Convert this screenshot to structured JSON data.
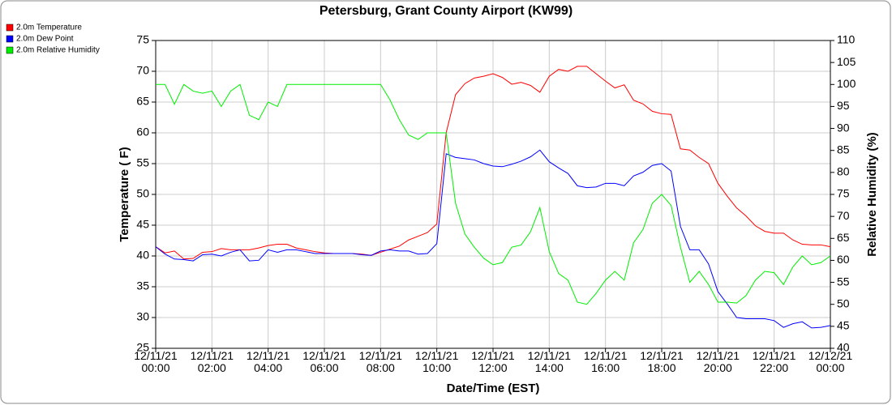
{
  "chart_data": {
    "type": "line",
    "title": "Petersburg, Grant County Airport (KW99)",
    "xlabel": "Date/Time (EST)",
    "ylabel": "Temperature ( F)",
    "y2label": "Relative Humidity (%)",
    "x": [
      "12/11/21 00:00",
      "12/11/21 00:20",
      "12/11/21 00:40",
      "12/11/21 01:00",
      "12/11/21 01:20",
      "12/11/21 01:40",
      "12/11/21 02:00",
      "12/11/21 02:20",
      "12/11/21 02:40",
      "12/11/21 03:00",
      "12/11/21 03:20",
      "12/11/21 03:40",
      "12/11/21 04:00",
      "12/11/21 04:20",
      "12/11/21 04:40",
      "12/11/21 05:00",
      "12/11/21 05:20",
      "12/11/21 05:40",
      "12/11/21 06:00",
      "12/11/21 06:20",
      "12/11/21 06:40",
      "12/11/21 07:00",
      "12/11/21 07:20",
      "12/11/21 07:40",
      "12/11/21 08:00",
      "12/11/21 08:20",
      "12/11/21 08:40",
      "12/11/21 09:00",
      "12/11/21 09:20",
      "12/11/21 09:40",
      "12/11/21 10:00",
      "12/11/21 10:20",
      "12/11/21 10:40",
      "12/11/21 11:00",
      "12/11/21 11:20",
      "12/11/21 11:40",
      "12/11/21 12:00",
      "12/11/21 12:20",
      "12/11/21 12:40",
      "12/11/21 13:00",
      "12/11/21 13:20",
      "12/11/21 13:40",
      "12/11/21 14:00",
      "12/11/21 14:20",
      "12/11/21 14:40",
      "12/11/21 15:00",
      "12/11/21 15:20",
      "12/11/21 15:40",
      "12/11/21 16:00",
      "12/11/21 16:20",
      "12/11/21 16:40",
      "12/11/21 17:00",
      "12/11/21 17:20",
      "12/11/21 17:40",
      "12/11/21 18:00",
      "12/11/21 18:20",
      "12/11/21 18:40",
      "12/11/21 19:00",
      "12/11/21 19:20",
      "12/11/21 19:40",
      "12/11/21 20:00",
      "12/11/21 20:20",
      "12/11/21 20:40",
      "12/11/21 21:00",
      "12/11/21 21:20",
      "12/11/21 21:40",
      "12/11/21 22:00",
      "12/11/21 22:20",
      "12/11/21 22:40",
      "12/11/21 23:00",
      "12/11/21 23:20",
      "12/11/21 23:40",
      "12/12/21 00:00"
    ],
    "series": [
      {
        "name": "2.0m Temperature",
        "color": "#ff0000",
        "values": [
          41.5,
          40.5,
          40.8,
          39.5,
          39.6,
          40.6,
          40.7,
          41.2,
          41.0,
          41.0,
          41.0,
          41.3,
          41.7,
          41.9,
          41.9,
          41.3,
          41.0,
          40.7,
          40.5,
          40.4,
          40.4,
          40.4,
          40.3,
          40.1,
          40.6,
          41.1,
          41.6,
          42.6,
          43.2,
          43.8,
          45.2,
          60.0,
          66.2,
          68.0,
          68.9,
          69.2,
          69.6,
          69.0,
          67.9,
          68.2,
          67.7,
          66.6,
          69.2,
          70.3,
          70.0,
          70.8,
          70.8,
          69.6,
          68.4,
          67.3,
          67.8,
          65.3,
          64.7,
          63.5,
          63.1,
          63.0,
          57.4,
          57.2,
          56.0,
          55.0,
          51.8,
          49.7,
          47.8,
          46.5,
          44.9,
          44.0,
          43.7,
          43.7,
          42.6,
          41.9,
          41.8,
          41.8,
          41.5
        ]
      },
      {
        "name": "2.0m Dew Point",
        "color": "#0000ff",
        "values": [
          41.5,
          40.3,
          39.5,
          39.4,
          39.2,
          40.2,
          40.3,
          40.0,
          40.6,
          41.0,
          39.2,
          39.3,
          41.0,
          40.6,
          41.0,
          41.0,
          40.7,
          40.4,
          40.4,
          40.4,
          40.4,
          40.4,
          40.2,
          40.1,
          40.8,
          41.0,
          40.8,
          40.8,
          40.3,
          40.4,
          42.0,
          56.6,
          56.0,
          55.8,
          55.6,
          55.0,
          54.6,
          54.5,
          54.9,
          55.4,
          56.1,
          57.2,
          55.3,
          54.3,
          53.4,
          51.4,
          51.1,
          51.2,
          51.8,
          51.8,
          51.4,
          53.0,
          53.6,
          54.7,
          55.0,
          53.8,
          44.8,
          41.0,
          41.0,
          38.7,
          34.2,
          32.2,
          30.0,
          29.8,
          29.8,
          29.8,
          29.5,
          28.4,
          29.0,
          29.3,
          28.3,
          28.4,
          28.7
        ]
      },
      {
        "name": "2.0m Relative Humidity",
        "color": "#00ee00",
        "axis": "y2",
        "values": [
          100,
          100,
          95.5,
          100,
          98.5,
          98,
          98.5,
          95,
          98.5,
          100,
          93,
          92,
          96,
          95,
          100,
          100,
          100,
          100,
          100,
          100,
          100,
          100,
          100,
          100,
          100,
          96.5,
          92,
          88.5,
          87.5,
          89,
          89,
          89,
          73,
          66,
          63,
          60.5,
          59,
          59.5,
          63,
          63.5,
          66.5,
          72,
          62,
          57,
          55.5,
          50.5,
          50,
          52.5,
          55.5,
          57.5,
          55.5,
          64,
          67,
          73,
          75,
          72.5,
          63,
          55,
          57.5,
          54.5,
          50.5,
          50.5,
          50.3,
          52,
          55.5,
          57.5,
          57.2,
          54.5,
          58.5,
          61,
          59,
          59.5,
          61
        ]
      }
    ],
    "xlim": [
      "12/11/21 00:00",
      "12/12/21 00:00"
    ],
    "xticks": [
      "12/11/21\n00:00",
      "12/11/21\n02:00",
      "12/11/21\n04:00",
      "12/11/21\n06:00",
      "12/11/21\n08:00",
      "12/11/21\n10:00",
      "12/11/21\n12:00",
      "12/11/21\n14:00",
      "12/11/21\n16:00",
      "12/11/21\n18:00",
      "12/11/21\n20:00",
      "12/11/21\n22:00",
      "12/12/21\n00:00"
    ],
    "ylim": [
      25,
      75
    ],
    "yticks": [
      25,
      30,
      35,
      40,
      45,
      50,
      55,
      60,
      65,
      70,
      75
    ],
    "y2lim": [
      40,
      110
    ],
    "y2ticks": [
      40,
      45,
      50,
      55,
      60,
      65,
      70,
      75,
      80,
      85,
      90,
      95,
      100,
      105,
      110
    ],
    "grid": true,
    "legend": "upper left"
  }
}
